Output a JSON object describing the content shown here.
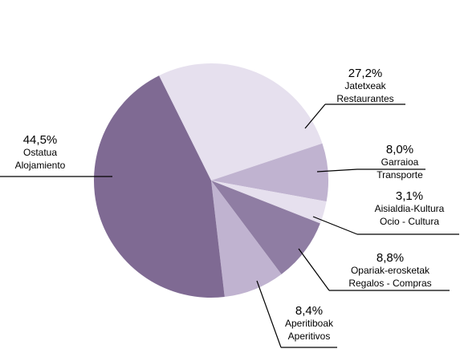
{
  "chart_data": {
    "type": "pie",
    "categories": [
      [
        "Jatetxeak",
        "Restaurantes"
      ],
      [
        "Garraioa",
        "Transporte"
      ],
      [
        "Aisialdia-Kultura",
        "Ocio - Cultura"
      ],
      [
        "Opariak-erosketak",
        "Regalos - Compras"
      ],
      [
        "Aperitiboak",
        "Aperitivos"
      ],
      [
        "Ostatua",
        "Alojamiento"
      ]
    ],
    "values": [
      27.2,
      8.0,
      3.1,
      8.8,
      8.4,
      44.5
    ],
    "value_labels": [
      "27,2%",
      "8,0%",
      "3,1%",
      "8,8%",
      "8,4%",
      "44,5%"
    ],
    "colors": [
      "#e6e0ee",
      "#c0b3d0",
      "#e6e0ee",
      "#8f7da3",
      "#c0b3d0",
      "#7f6a93"
    ]
  }
}
